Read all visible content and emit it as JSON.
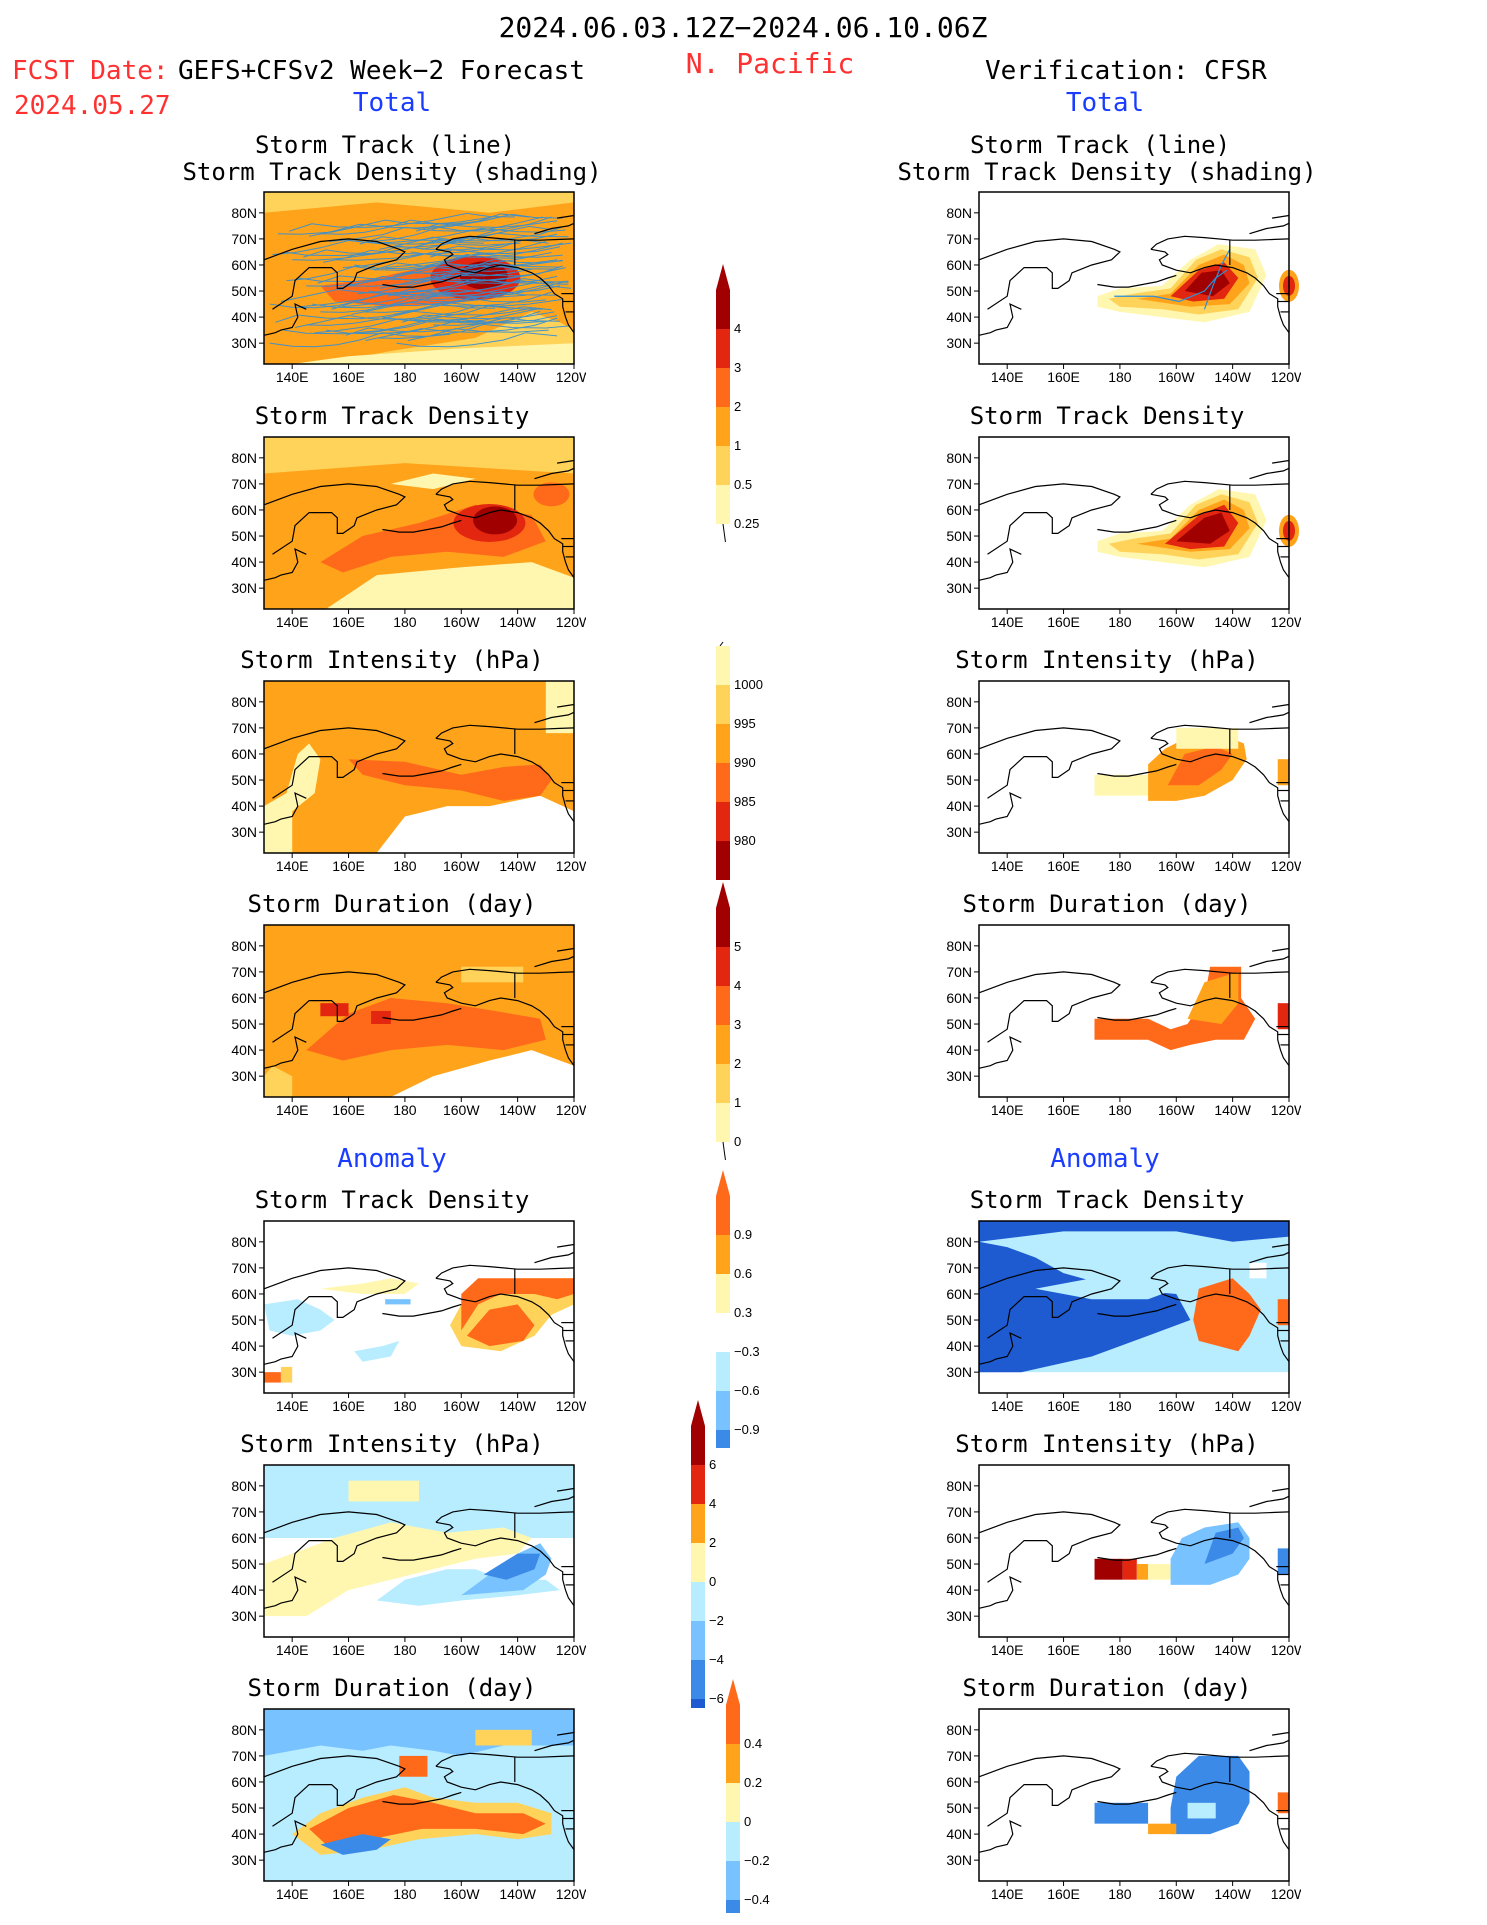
{
  "header": {
    "period": "2024.06.03.12Z−2024.06.10.06Z",
    "region": "N. Pacific",
    "fcst_prefix": "FCST Date:",
    "fcst_model": "GEFS+CFSv2 Week−2 Forecast",
    "fcst_date": "2024.05.27",
    "verification": "Verification: CFSR"
  },
  "sections": {
    "total": "Total",
    "anomaly": "Anomaly"
  },
  "panel_titles": {
    "track_line": "Storm Track (line)",
    "track_shading": "Storm Track Density (shading)",
    "density": "Storm Track Density",
    "intensity": "Storm Intensity (hPa)",
    "duration": "Storm Duration (day)"
  },
  "axes": {
    "lat_labels": [
      "80N",
      "70N",
      "60N",
      "50N",
      "40N",
      "30N"
    ],
    "lon_labels": [
      "140E",
      "160E",
      "180",
      "160W",
      "140W",
      "120W"
    ]
  },
  "colorbars": {
    "density_total": [
      "4",
      "3",
      "2",
      "1",
      "0.5",
      "0.25"
    ],
    "intensity_total": [
      "1000",
      "995",
      "990",
      "985",
      "980"
    ],
    "duration_total": [
      "5",
      "4",
      "3",
      "2",
      "1",
      "0"
    ],
    "density_anom": [
      "0.9",
      "0.6",
      "0.3",
      "−0.3",
      "−0.6",
      "−0.9"
    ],
    "intensity_anom": [
      "6",
      "4",
      "2",
      "0",
      "−2",
      "−4",
      "−6"
    ],
    "duration_anom": [
      "0.4",
      "0.2",
      "0",
      "−0.2",
      "−0.4"
    ]
  },
  "colors": {
    "pale_yellow": "#fff7b0",
    "light_orange": "#ffd35a",
    "orange": "#ffa31a",
    "dark_orange": "#ff6a1a",
    "red": "#e2260f",
    "dark_red": "#a00000",
    "light_blue": "#b8ecff",
    "mid_blue": "#78c2ff",
    "blue": "#3b8ae8",
    "dark_blue": "#1e5bd1",
    "track_line": "#2f8fd6",
    "title_red": "#ff3030",
    "title_blue": "#1a3cff"
  }
}
